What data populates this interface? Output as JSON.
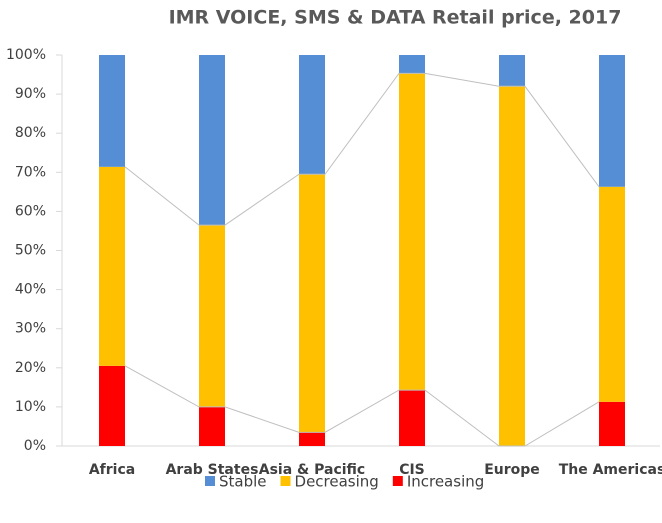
{
  "chart_data": {
    "type": "stacked_bar",
    "title": "IMR VOICE, SMS & DATA Retail price, 2017",
    "categories": [
      "Africa",
      "Arab States",
      "Asia & Pacific",
      "CIS",
      "Europe",
      "The Americas"
    ],
    "series": [
      {
        "name": "Increasing",
        "color": "#ff0000",
        "values": [
          20.5,
          10,
          3.5,
          14.3,
          0,
          11.3
        ]
      },
      {
        "name": "Decreasing",
        "color": "#ffc000",
        "values": [
          50.9,
          46.5,
          66,
          81,
          92,
          55
        ]
      },
      {
        "name": "Stable",
        "color": "#558ed5",
        "values": [
          28.6,
          43.5,
          30.5,
          4.7,
          8,
          33.7
        ]
      }
    ],
    "ylim": [
      0,
      100
    ],
    "yticks": [
      {
        "value": 0,
        "label": "0%"
      },
      {
        "value": 10,
        "label": "10%"
      },
      {
        "value": 20,
        "label": "20%"
      },
      {
        "value": 30,
        "label": "30%"
      },
      {
        "value": 40,
        "label": "40%"
      },
      {
        "value": 50,
        "label": "50%"
      },
      {
        "value": 60,
        "label": "60%"
      },
      {
        "value": 70,
        "label": "70%"
      },
      {
        "value": 80,
        "label": "80%"
      },
      {
        "value": 90,
        "label": "90%"
      },
      {
        "value": 100,
        "label": "100%"
      }
    ],
    "legend": "bottom",
    "series_lines": true
  }
}
